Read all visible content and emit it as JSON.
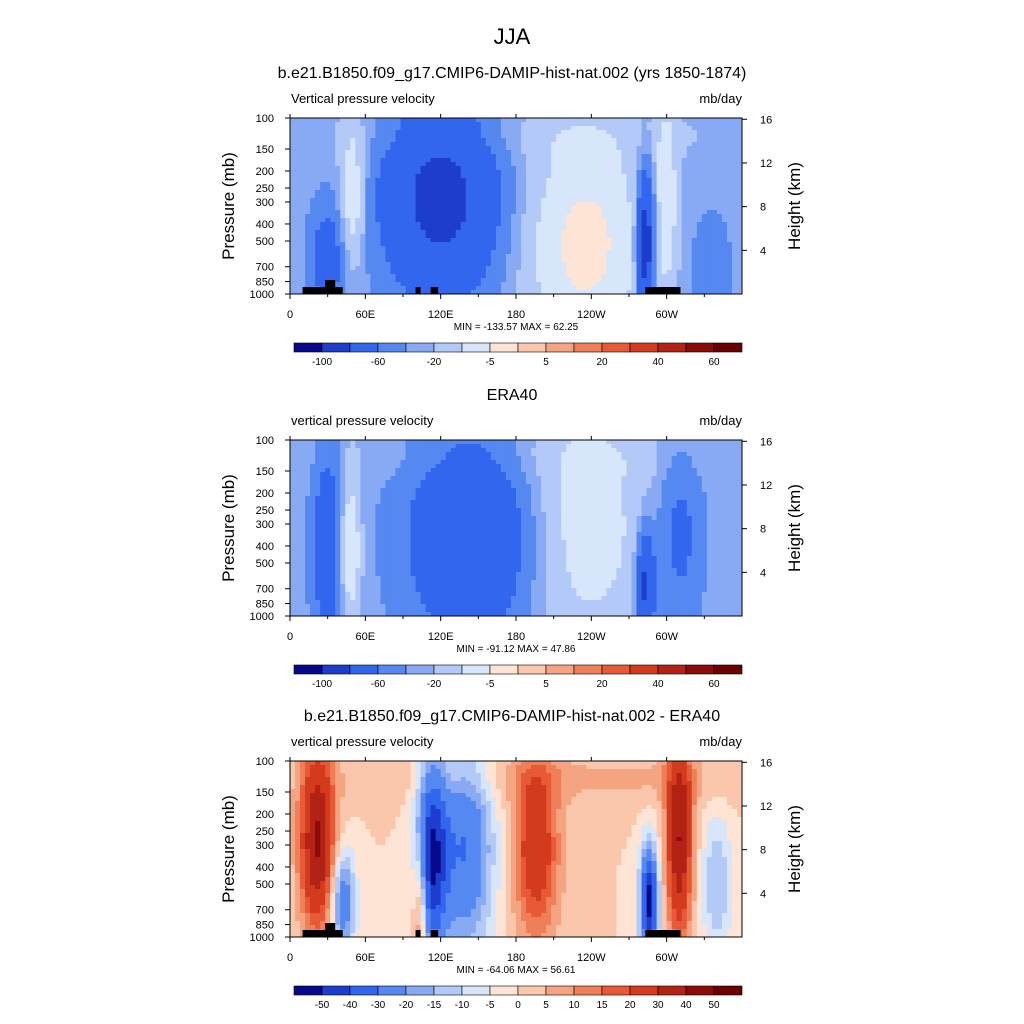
{
  "figure": {
    "title": "JJA"
  },
  "chart_data": [
    {
      "type": "heatmap",
      "title": "b.e21.B1850.f09_g17.CMIP6-DAMIP-hist-nat.002 (yrs 1850-1874)",
      "left_label": "Vertical pressure velocity",
      "right_label": "mb/day",
      "ylabel": "Pressure (mb)",
      "ylabel_right": "Height (km)",
      "x_ticks": [
        "0",
        "60E",
        "120E",
        "180",
        "120W",
        "60W"
      ],
      "y_ticks": [
        "100",
        "150",
        "200",
        "250",
        "300",
        "400",
        "500",
        "700",
        "850",
        "1000"
      ],
      "right_ticks": [
        "16",
        "12",
        "8",
        "4"
      ],
      "xlim": [
        0,
        360
      ],
      "ylim": [
        1000,
        100
      ],
      "y_log": true,
      "min": -133.57,
      "max": 62.25,
      "stats_text": "MIN = -133.57  MAX =  62.25",
      "colorbar_levels": [
        "-100",
        "-60",
        "-20",
        "-5",
        "5",
        "20",
        "40",
        "60"
      ],
      "colorbar_colors": [
        "#08088a",
        "#1d3dcc",
        "#3366ee",
        "#5588f0",
        "#88aaf4",
        "#b3c9f7",
        "#d8e6fb",
        "#fde4d4",
        "#fac7ad",
        "#f5a481",
        "#ef7f58",
        "#e85a35",
        "#d43a1e",
        "#b22215",
        "#8b0b0b",
        "#6a0000"
      ]
    },
    {
      "type": "heatmap",
      "title": "ERA40",
      "left_label": "vertical pressure velocity",
      "right_label": "mb/day",
      "ylabel": "Pressure (mb)",
      "ylabel_right": "Height (km)",
      "x_ticks": [
        "0",
        "60E",
        "120E",
        "180",
        "120W",
        "60W"
      ],
      "y_ticks": [
        "100",
        "150",
        "200",
        "250",
        "300",
        "400",
        "500",
        "700",
        "850",
        "1000"
      ],
      "right_ticks": [
        "16",
        "12",
        "8",
        "4"
      ],
      "xlim": [
        0,
        360
      ],
      "ylim": [
        1000,
        100
      ],
      "y_log": true,
      "min": -91.12,
      "max": 47.86,
      "stats_text": "MIN = -91.12  MAX =  47.86",
      "colorbar_levels": [
        "-100",
        "-60",
        "-20",
        "-5",
        "5",
        "20",
        "40",
        "60"
      ],
      "colorbar_colors": [
        "#08088a",
        "#1d3dcc",
        "#3366ee",
        "#5588f0",
        "#88aaf4",
        "#b3c9f7",
        "#d8e6fb",
        "#fde4d4",
        "#fac7ad",
        "#f5a481",
        "#ef7f58",
        "#e85a35",
        "#d43a1e",
        "#b22215",
        "#8b0b0b",
        "#6a0000"
      ]
    },
    {
      "type": "heatmap",
      "title": "b.e21.B1850.f09_g17.CMIP6-DAMIP-hist-nat.002 - ERA40",
      "left_label": "vertical pressure velocity",
      "right_label": "mb/day",
      "ylabel": "Pressure (mb)",
      "ylabel_right": "Height (km)",
      "x_ticks": [
        "0",
        "60E",
        "120E",
        "180",
        "120W",
        "60W"
      ],
      "y_ticks": [
        "100",
        "150",
        "200",
        "250",
        "300",
        "400",
        "500",
        "700",
        "850",
        "1000"
      ],
      "right_ticks": [
        "16",
        "12",
        "8",
        "4"
      ],
      "xlim": [
        0,
        360
      ],
      "ylim": [
        1000,
        100
      ],
      "y_log": true,
      "min": -64.06,
      "max": 56.61,
      "stats_text": "MIN = -64.06  MAX =  56.61",
      "colorbar_levels": [
        "-50",
        "-40",
        "-30",
        "-20",
        "-15",
        "-10",
        "-5",
        "0",
        "5",
        "10",
        "15",
        "20",
        "30",
        "40",
        "50"
      ],
      "colorbar_colors": [
        "#08088a",
        "#1d3dcc",
        "#3366ee",
        "#5588f0",
        "#88aaf4",
        "#b3c9f7",
        "#d8e6fb",
        "#fde4d4",
        "#fac7ad",
        "#f5a481",
        "#ef7f58",
        "#e85a35",
        "#d43a1e",
        "#b22215",
        "#8b0b0b",
        "#6a0000"
      ]
    }
  ]
}
